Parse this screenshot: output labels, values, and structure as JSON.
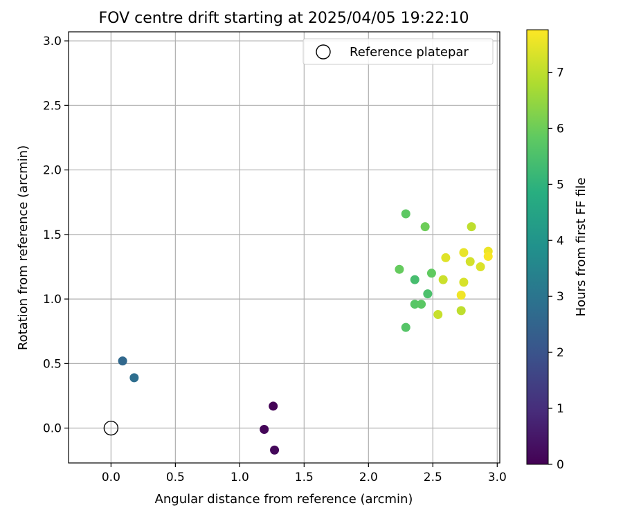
{
  "chart_data": {
    "type": "scatter",
    "title": "FOV centre drift starting at 2025/04/05 19:22:10",
    "xlabel": "Angular distance from reference (arcmin)",
    "ylabel": "Rotation from reference (arcmin)",
    "xlim": [
      -0.33,
      3.02
    ],
    "ylim": [
      -0.27,
      3.07
    ],
    "xticks": [
      0.0,
      0.5,
      1.0,
      1.5,
      2.0,
      2.5,
      3.0
    ],
    "xtick_labels": [
      "0.0",
      "0.5",
      "1.0",
      "1.5",
      "2.0",
      "2.5",
      "3.0"
    ],
    "yticks": [
      0.0,
      0.5,
      1.0,
      1.5,
      2.0,
      2.5,
      3.0
    ],
    "ytick_labels": [
      "0.0",
      "0.5",
      "1.0",
      "1.5",
      "2.0",
      "2.5",
      "3.0"
    ],
    "grid": true,
    "legend": {
      "position": "top-right",
      "entries": [
        {
          "label": "Reference platepar",
          "marker": "open-circle",
          "color": "#000000"
        }
      ]
    },
    "reference_point": {
      "x": 0.0,
      "y": 0.0
    },
    "colorbar": {
      "label": "Hours from first FF file",
      "colormap": "viridis",
      "range": [
        0,
        7.76
      ],
      "ticks": [
        0,
        1,
        2,
        3,
        4,
        5,
        6,
        7
      ],
      "tick_labels": [
        "0",
        "1",
        "2",
        "3",
        "4",
        "5",
        "6",
        "7"
      ]
    },
    "series": [
      {
        "points": [
          {
            "x": 1.26,
            "y": 0.17,
            "c": 0.05
          },
          {
            "x": 1.19,
            "y": -0.01,
            "c": 0.1
          },
          {
            "x": 1.27,
            "y": -0.17,
            "c": 0.15
          },
          {
            "x": 0.09,
            "y": 0.52,
            "c": 2.6
          },
          {
            "x": 0.18,
            "y": 0.39,
            "c": 2.8
          },
          {
            "x": 2.29,
            "y": 0.78,
            "c": 5.65
          },
          {
            "x": 2.29,
            "y": 1.66,
            "c": 5.8
          },
          {
            "x": 2.24,
            "y": 1.23,
            "c": 5.9
          },
          {
            "x": 2.36,
            "y": 1.15,
            "c": 5.4
          },
          {
            "x": 2.36,
            "y": 0.96,
            "c": 5.7
          },
          {
            "x": 2.41,
            "y": 0.96,
            "c": 5.75
          },
          {
            "x": 2.46,
            "y": 1.04,
            "c": 5.5
          },
          {
            "x": 2.49,
            "y": 1.2,
            "c": 5.85
          },
          {
            "x": 2.44,
            "y": 1.56,
            "c": 6.0
          },
          {
            "x": 2.54,
            "y": 0.88,
            "c": 7.1
          },
          {
            "x": 2.58,
            "y": 1.15,
            "c": 7.15
          },
          {
            "x": 2.6,
            "y": 1.32,
            "c": 7.4
          },
          {
            "x": 2.72,
            "y": 0.91,
            "c": 7.0
          },
          {
            "x": 2.72,
            "y": 1.03,
            "c": 7.6
          },
          {
            "x": 2.74,
            "y": 1.13,
            "c": 7.3
          },
          {
            "x": 2.74,
            "y": 1.36,
            "c": 7.5
          },
          {
            "x": 2.79,
            "y": 1.29,
            "c": 7.25
          },
          {
            "x": 2.8,
            "y": 1.56,
            "c": 7.0
          },
          {
            "x": 2.87,
            "y": 1.25,
            "c": 7.35
          },
          {
            "x": 2.93,
            "y": 1.37,
            "c": 7.55
          },
          {
            "x": 2.93,
            "y": 1.33,
            "c": 7.7
          }
        ]
      }
    ]
  }
}
